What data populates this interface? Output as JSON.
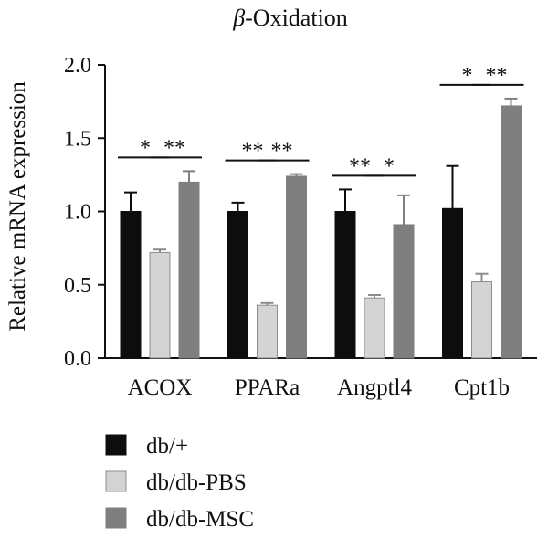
{
  "chart_data": {
    "type": "bar",
    "title_prefix": "β",
    "title_suffix": "-Oxidation",
    "xlabel": "",
    "ylabel": "Relative mRNA expression",
    "ylim": [
      0,
      2.0
    ],
    "yticks": [
      "0.0",
      "0.5",
      "1.0",
      "1.5",
      "2.0"
    ],
    "categories": [
      "ACOX",
      "PPARa",
      "Angptl4",
      "Cpt1b"
    ],
    "series": [
      {
        "name": "db/+",
        "color": "#0d0d0d",
        "values": [
          1.0,
          1.0,
          1.0,
          1.02
        ],
        "errors": [
          0.13,
          0.06,
          0.15,
          0.29
        ]
      },
      {
        "name": "db/db-PBS",
        "color": "#d4d4d4",
        "values": [
          0.72,
          0.36,
          0.41,
          0.52
        ],
        "errors": [
          0.02,
          0.015,
          0.02,
          0.055
        ]
      },
      {
        "name": "db/db-MSC",
        "color": "#7f7f7f",
        "values": [
          1.2,
          1.24,
          0.91,
          1.72
        ],
        "errors": [
          0.075,
          0.015,
          0.2,
          0.05
        ]
      }
    ],
    "significance": [
      {
        "category": 0,
        "from": 0,
        "to": 1,
        "label": "*"
      },
      {
        "category": 0,
        "from": 1,
        "to": 2,
        "label": "**"
      },
      {
        "category": 1,
        "from": 0,
        "to": 1,
        "label": "**"
      },
      {
        "category": 1,
        "from": 1,
        "to": 2,
        "label": "**"
      },
      {
        "category": 2,
        "from": 0,
        "to": 1,
        "label": "**"
      },
      {
        "category": 2,
        "from": 1,
        "to": 2,
        "label": "*"
      },
      {
        "category": 3,
        "from": 0,
        "to": 1,
        "label": "*"
      },
      {
        "category": 3,
        "from": 1,
        "to": 2,
        "label": "**"
      }
    ],
    "legend_position": "bottom-left",
    "grid": false
  }
}
